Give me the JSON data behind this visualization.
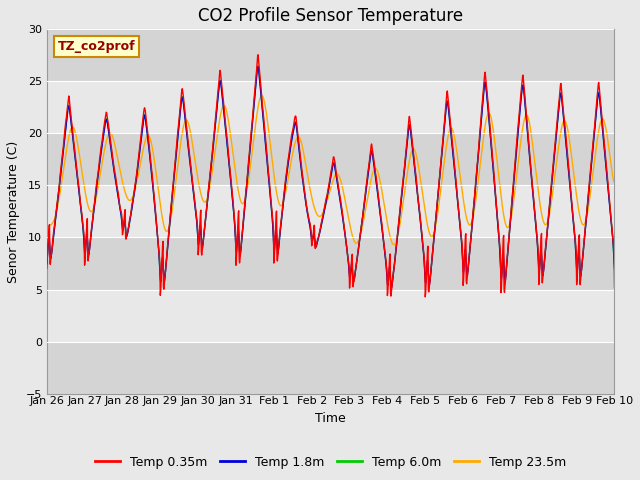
{
  "title": "CO2 Profile Sensor Temperature",
  "xlabel": "Time",
  "ylabel": "Senor Temperature (C)",
  "ylim": [
    -5,
    30
  ],
  "background_color": "#e8e8e8",
  "plot_bg_color": "#e8e8e8",
  "legend_label": "TZ_co2prof",
  "legend_bg": "#ffffcc",
  "legend_edge": "#cc8800",
  "series": [
    {
      "label": "Temp 0.35m",
      "color": "#ff0000"
    },
    {
      "label": "Temp 1.8m",
      "color": "#0000dd"
    },
    {
      "label": "Temp 6.0m",
      "color": "#00cc00"
    },
    {
      "label": "Temp 23.5m",
      "color": "#ffaa00"
    }
  ],
  "tick_labels": [
    "Jan 26",
    "Jan 27",
    "Jan 28",
    "Jan 29",
    "Jan 30",
    "Jan 31",
    "Feb 1",
    "Feb 2",
    "Feb 3",
    "Feb 4",
    "Feb 5",
    "Feb 6",
    "Feb 7",
    "Feb 8",
    "Feb 9",
    "Feb 10"
  ],
  "yticks": [
    -5,
    0,
    5,
    10,
    15,
    20,
    25,
    30
  ],
  "title_fontsize": 12,
  "axis_fontsize": 9,
  "tick_fontsize": 8
}
